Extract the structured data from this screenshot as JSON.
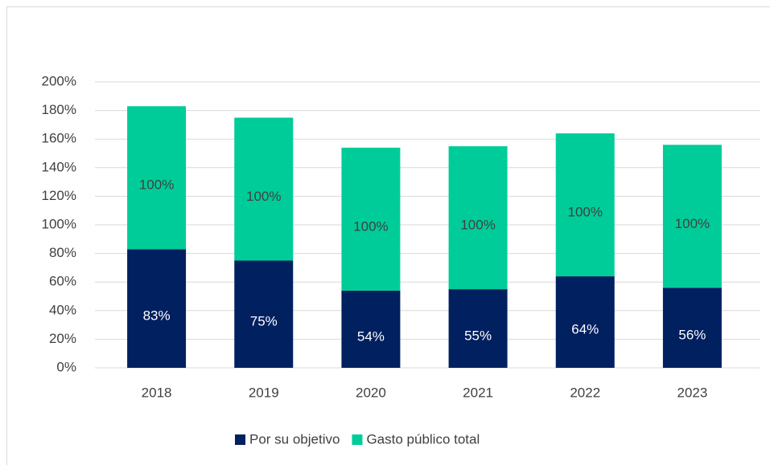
{
  "chart_data": {
    "type": "stacked_bar",
    "categories": [
      "2018",
      "2019",
      "2020",
      "2021",
      "2022",
      "2023"
    ],
    "series": [
      {
        "name": "Por su objetivo",
        "color": "#002060",
        "values": [
          83,
          75,
          54,
          55,
          64,
          56
        ],
        "value_labels": [
          "83%",
          "75%",
          "54%",
          "55%",
          "64%",
          "56%"
        ]
      },
      {
        "name": "Gasto público total",
        "color": "#00cc99",
        "values": [
          100,
          100,
          100,
          100,
          100,
          100
        ],
        "value_labels": [
          "100%",
          "100%",
          "100%",
          "100%",
          "100%",
          "100%"
        ]
      }
    ],
    "ylim": [
      0,
      200
    ],
    "yticks": [
      {
        "value": 0,
        "label": "0%"
      },
      {
        "value": 20,
        "label": "20%"
      },
      {
        "value": 40,
        "label": "40%"
      },
      {
        "value": 60,
        "label": "60%"
      },
      {
        "value": 80,
        "label": "80%"
      },
      {
        "value": 100,
        "label": "100%"
      },
      {
        "value": 120,
        "label": "120%"
      },
      {
        "value": 140,
        "label": "140%"
      },
      {
        "value": 160,
        "label": "160%"
      },
      {
        "value": 180,
        "label": "180%"
      },
      {
        "value": 200,
        "label": "200%"
      }
    ],
    "grid": true,
    "legend": "bottom"
  }
}
